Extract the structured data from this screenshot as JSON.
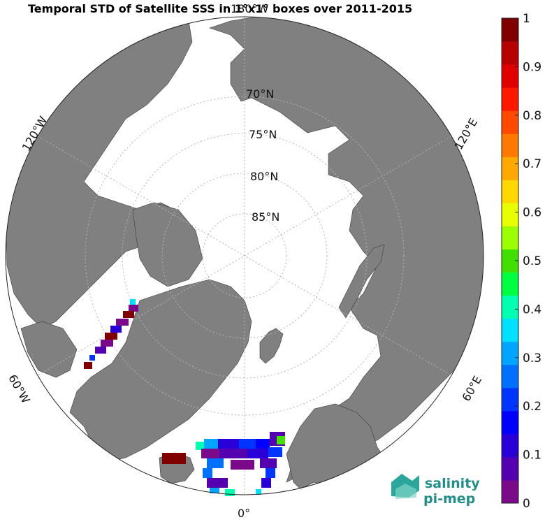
{
  "title": "Temporal STD of Satellite SSS in 1°x1° boxes over 2011-2015",
  "top_meridian_label": "180°W",
  "meridian_labels": {
    "bottom": "0°",
    "upper_left": "120°W",
    "upper_right": "120°E",
    "lower_left": "60°W",
    "lower_right": "60°E"
  },
  "latitude_labels": [
    "70°N",
    "75°N",
    "80°N",
    "85°N"
  ],
  "colorbar": {
    "min": 0,
    "max": 1,
    "ticks": [
      "0",
      "0.1",
      "0.2",
      "0.3",
      "0.4",
      "0.5",
      "0.6",
      "0.7",
      "0.8",
      "0.9",
      "1"
    ],
    "colors": [
      "#7a0a8a",
      "#5500b0",
      "#2a00d8",
      "#0000ff",
      "#0035ff",
      "#0070ff",
      "#00a5ff",
      "#00e0ff",
      "#00ffb0",
      "#00ff40",
      "#40e000",
      "#9cff00",
      "#e8ff00",
      "#ffd800",
      "#ffa800",
      "#ff7800",
      "#ff4800",
      "#ff1800",
      "#e00000",
      "#b80000",
      "#800000"
    ]
  },
  "logo": {
    "line1": "salinity",
    "line2": "pi-mep"
  },
  "colors": {
    "land": "#808080",
    "ocean": "#ffffff",
    "grid": "#b4b4b4"
  },
  "std_cells_greenland_sea_west": [
    {
      "value": 1.0
    },
    {
      "value": 0.95
    },
    {
      "value": 0.05
    },
    {
      "value": 0.1
    },
    {
      "value": 0.3
    },
    {
      "value": 0.4
    }
  ],
  "std_cells_nordic_seas": [
    {
      "value": 0.05
    },
    {
      "value": 0.15
    },
    {
      "value": 0.25
    },
    {
      "value": 0.3
    },
    {
      "value": 0.45
    },
    {
      "value": 0.5
    },
    {
      "value": 0.95
    }
  ]
}
